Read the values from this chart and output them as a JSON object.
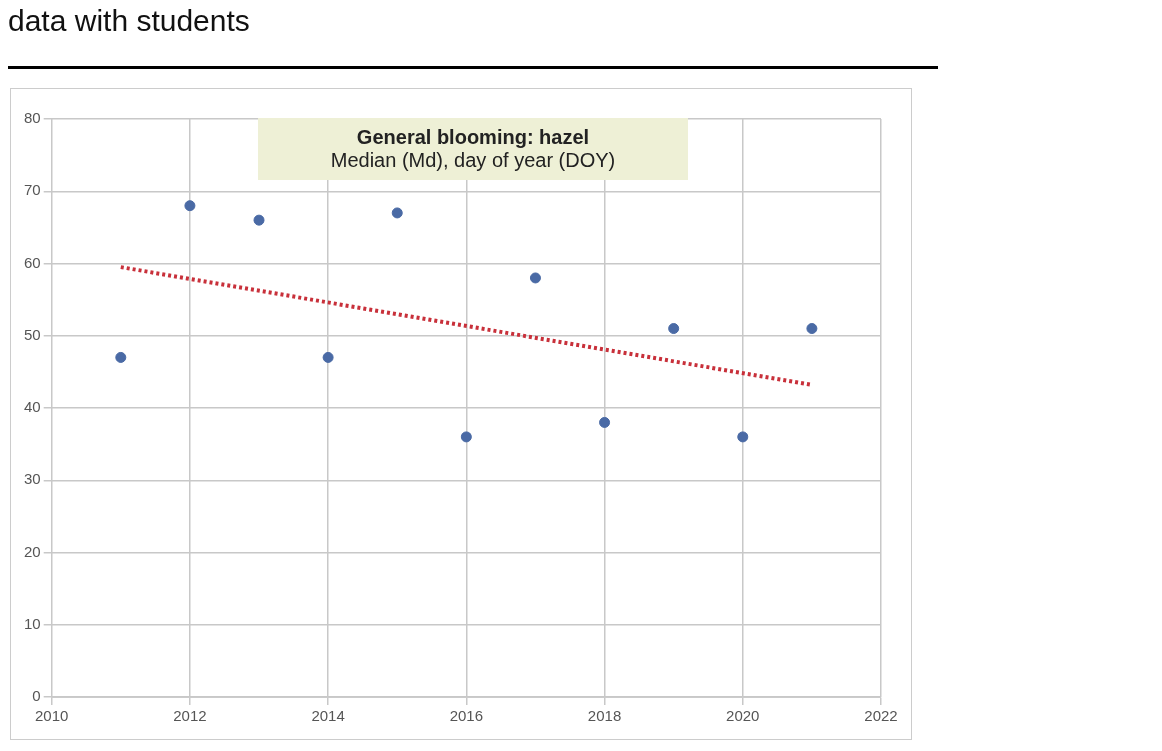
{
  "chart_data": {
    "type": "scatter",
    "title": "General blooming: hazel",
    "subtitle": "Median (Md), day of year (DOY)",
    "annotations": [
      "data with students"
    ],
    "x": [
      2011,
      2012,
      2013,
      2014,
      2015,
      2016,
      2017,
      2018,
      2019,
      2020,
      2021
    ],
    "series": [
      {
        "color": "#4a6aa5",
        "values": [
          47,
          68,
          66,
          47,
          67,
          36,
          58,
          38,
          51,
          36,
          51
        ],
        "marker": "circle"
      },
      {
        "type": "line",
        "color": "#c8303a",
        "x": [
          2011,
          2021
        ],
        "values": [
          59.5,
          43.2
        ],
        "line_style": "dotted",
        "marker": "none"
      }
    ],
    "xlim": [
      2010,
      2022
    ],
    "xticks": [
      2010,
      2012,
      2014,
      2016,
      2018,
      2020,
      2022
    ],
    "ylim": [
      0,
      80
    ],
    "yticks": [
      0,
      10,
      20,
      30,
      40,
      50,
      60,
      70,
      80
    ],
    "grid": true,
    "legend": false
  }
}
